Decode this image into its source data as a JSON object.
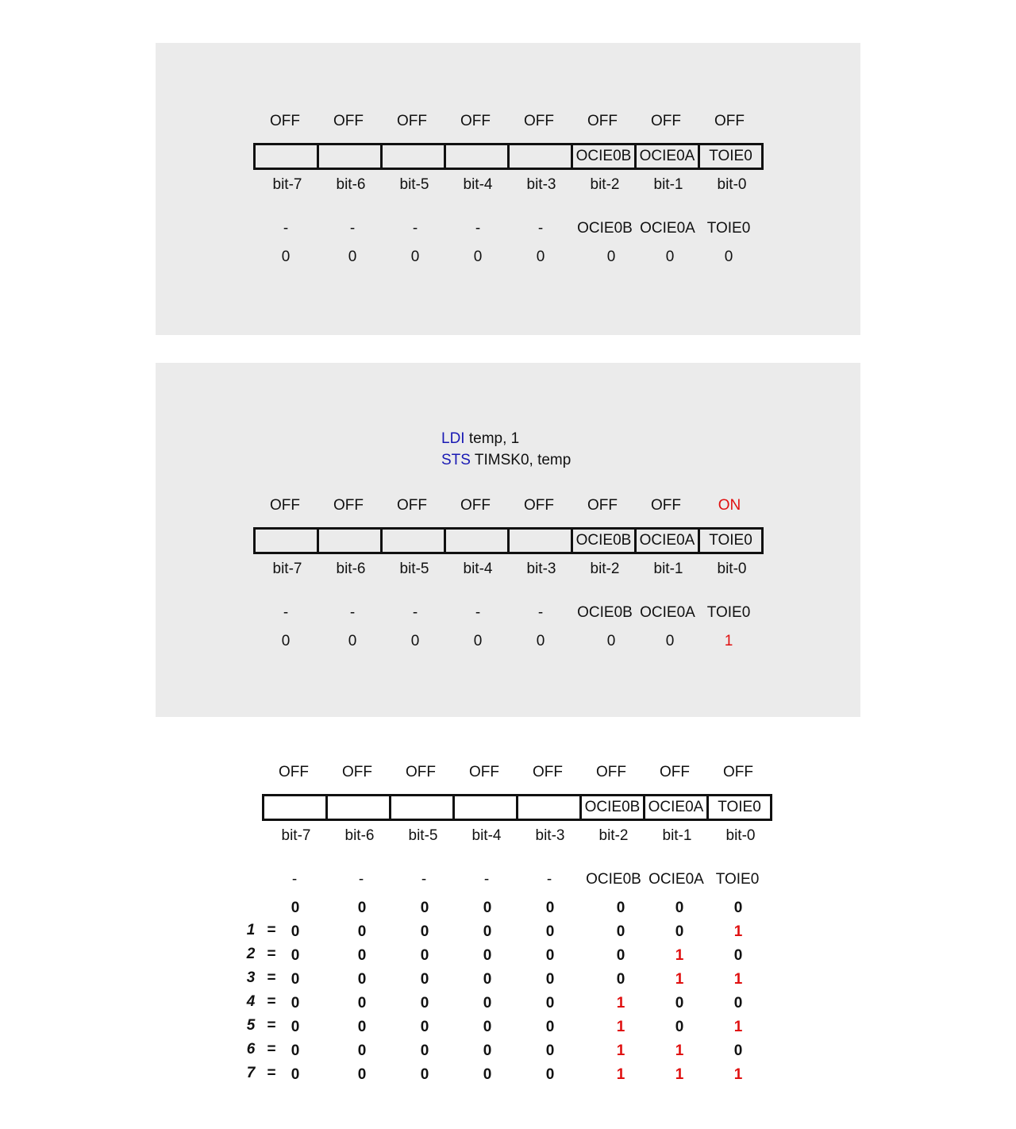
{
  "colors": {
    "panel_bg": "#ebebeb",
    "keyword": "#1a1ab4",
    "highlight": "#e01010"
  },
  "panels": [
    {
      "status": [
        "OFF",
        "OFF",
        "OFF",
        "OFF",
        "OFF",
        "OFF",
        "OFF",
        "OFF"
      ],
      "cells": [
        "",
        "",
        "",
        "",
        "",
        "OCIE0B",
        "OCIE0A",
        "TOIE0"
      ],
      "bits": [
        "bit-7",
        "bit-6",
        "bit-5",
        "bit-4",
        "bit-3",
        "bit-2",
        "bit-1",
        "bit-0"
      ],
      "names": [
        "-",
        "-",
        "-",
        "-",
        "-",
        "OCIE0B",
        "OCIE0A",
        "TOIE0"
      ],
      "values": [
        "0",
        "0",
        "0",
        "0",
        "0",
        "0",
        "0",
        "0"
      ]
    },
    {
      "code": [
        {
          "kw": "LDI",
          "rest": " temp, 1"
        },
        {
          "kw": "STS",
          "rest": " TIMSK0, temp"
        }
      ],
      "status": [
        "OFF",
        "OFF",
        "OFF",
        "OFF",
        "OFF",
        "OFF",
        "OFF",
        "ON"
      ],
      "cells": [
        "",
        "",
        "",
        "",
        "",
        "OCIE0B",
        "OCIE0A",
        "TOIE0"
      ],
      "bits": [
        "bit-7",
        "bit-6",
        "bit-5",
        "bit-4",
        "bit-3",
        "bit-2",
        "bit-1",
        "bit-0"
      ],
      "names": [
        "-",
        "-",
        "-",
        "-",
        "-",
        "OCIE0B",
        "OCIE0A",
        "TOIE0"
      ],
      "values": [
        "0",
        "0",
        "0",
        "0",
        "0",
        "0",
        "0",
        "1"
      ]
    },
    {
      "status": [
        "OFF",
        "OFF",
        "OFF",
        "OFF",
        "OFF",
        "OFF",
        "OFF",
        "OFF"
      ],
      "cells": [
        "",
        "",
        "",
        "",
        "",
        "OCIE0B",
        "OCIE0A",
        "TOIE0"
      ],
      "bits": [
        "bit-7",
        "bit-6",
        "bit-5",
        "bit-4",
        "bit-3",
        "bit-2",
        "bit-1",
        "bit-0"
      ],
      "names": [
        "-",
        "-",
        "-",
        "-",
        "-",
        "OCIE0B",
        "OCIE0A",
        "TOIE0"
      ],
      "values": [
        "0",
        "0",
        "0",
        "0",
        "0",
        "0",
        "0",
        "0"
      ],
      "rows": [
        {
          "label": "1",
          "eq": "=",
          "bits": [
            "0",
            "0",
            "0",
            "0",
            "0",
            "0",
            "0",
            "1"
          ]
        },
        {
          "label": "2",
          "eq": "=",
          "bits": [
            "0",
            "0",
            "0",
            "0",
            "0",
            "0",
            "1",
            "0"
          ]
        },
        {
          "label": "3",
          "eq": "=",
          "bits": [
            "0",
            "0",
            "0",
            "0",
            "0",
            "0",
            "1",
            "1"
          ]
        },
        {
          "label": "4",
          "eq": "=",
          "bits": [
            "0",
            "0",
            "0",
            "0",
            "0",
            "1",
            "0",
            "0"
          ]
        },
        {
          "label": "5",
          "eq": "=",
          "bits": [
            "0",
            "0",
            "0",
            "0",
            "0",
            "1",
            "0",
            "1"
          ]
        },
        {
          "label": "6",
          "eq": "=",
          "bits": [
            "0",
            "0",
            "0",
            "0",
            "0",
            "1",
            "1",
            "0"
          ]
        },
        {
          "label": "7",
          "eq": "=",
          "bits": [
            "0",
            "0",
            "0",
            "0",
            "0",
            "1",
            "1",
            "1"
          ]
        }
      ]
    }
  ]
}
